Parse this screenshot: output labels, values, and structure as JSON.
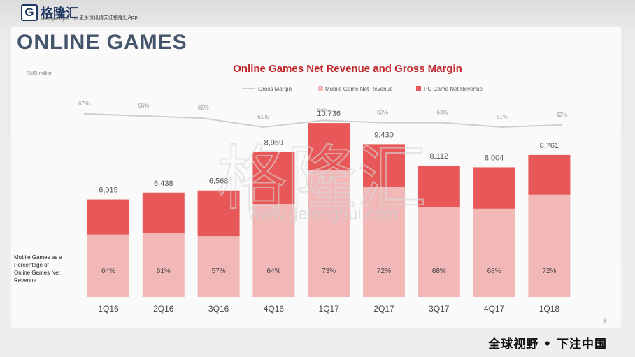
{
  "branding": {
    "logo_letter": "G",
    "logo_name": "格隆汇",
    "logo_domain": "www.gelonghui.com",
    "slogan": "更多资讯请关注格隆汇App",
    "footer_slogan": "全球视野 • 下注中国",
    "watermark_text": "格隆汇",
    "watermark_url": "www.gelonghui.com"
  },
  "slide": {
    "title": "ONLINE GAMES",
    "page_number": "8"
  },
  "colors": {
    "mobile": "#f2b8b8",
    "pc": "#e85858",
    "gross_margin_line": "#cfcfcf",
    "title_red": "#c0282d",
    "slide_title": "#44546a"
  },
  "chart_data": {
    "type": "bar",
    "title": "Online Games Net Revenue and Gross Margin",
    "ylabel": "RMB million",
    "categories": [
      "1Q16",
      "2Q16",
      "3Q16",
      "4Q16",
      "1Q17",
      "2Q17",
      "3Q17",
      "4Q17",
      "1Q18"
    ],
    "totals": [
      6015,
      6438,
      6568,
      8959,
      10736,
      9430,
      8112,
      8004,
      8761
    ],
    "total_labels": [
      "6,015",
      "6,438",
      "6,568",
      "8,959",
      "10,736",
      "9,430",
      "8,112",
      "8,004",
      "8,761"
    ],
    "mobile_share_labels": [
      "64%",
      "61%",
      "57%",
      "64%",
      "73%",
      "72%",
      "68%",
      "68%",
      "72%"
    ],
    "mobile_share": [
      64,
      61,
      57,
      64,
      73,
      72,
      68,
      68,
      72
    ],
    "series": [
      {
        "name": "Mobile Game Net Revenue",
        "values": [
          3850,
          3927,
          3744,
          5734,
          7837,
          6790,
          5516,
          5443,
          6308
        ]
      },
      {
        "name": "PC Game Net Revenue",
        "values": [
          2165,
          2511,
          2824,
          3225,
          2899,
          2640,
          2596,
          2561,
          2453
        ]
      }
    ],
    "gross_margin": {
      "name": "Gross Margin",
      "values": [
        67,
        66,
        65,
        61,
        64,
        63,
        63,
        61,
        62
      ],
      "labels": [
        "67%",
        "66%",
        "65%",
        "61%",
        "64%",
        "63%",
        "63%",
        "61%",
        "62%"
      ]
    },
    "side_note": "Mobile Games as a Percentage of Online Games Net Revenue",
    "legend_position": "top",
    "ylim": [
      0,
      11000
    ],
    "grid": false
  }
}
